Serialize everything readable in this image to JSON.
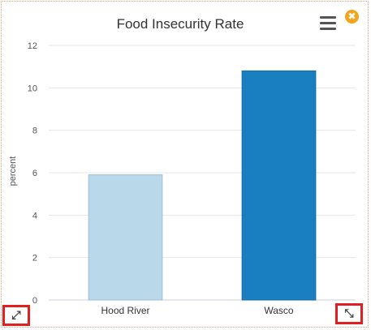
{
  "chart_data": {
    "type": "bar",
    "title": "Food Insecurity Rate",
    "xlabel": "",
    "ylabel": "percent",
    "categories": [
      "Hood River",
      "Wasco"
    ],
    "values": [
      5.9,
      10.8
    ],
    "bar_colors": [
      "#b9d8ea",
      "#1a7fc1"
    ],
    "ylim": [
      0,
      12
    ],
    "yticks": [
      0,
      2,
      4,
      6,
      8,
      10,
      12
    ],
    "grid": true,
    "legend": "none"
  },
  "controls": {
    "menu_icon": "hamburger-menu-icon",
    "close_icon": "close-icon",
    "close_glyph": "✖",
    "expand_icon": "expand-arrows-icon",
    "expand_glyph": "⤢",
    "resize_icon": "resize-arrows-icon",
    "resize_glyph": "⤡",
    "accent_color": "#f2a41c",
    "highlight_color": "#e02020"
  }
}
